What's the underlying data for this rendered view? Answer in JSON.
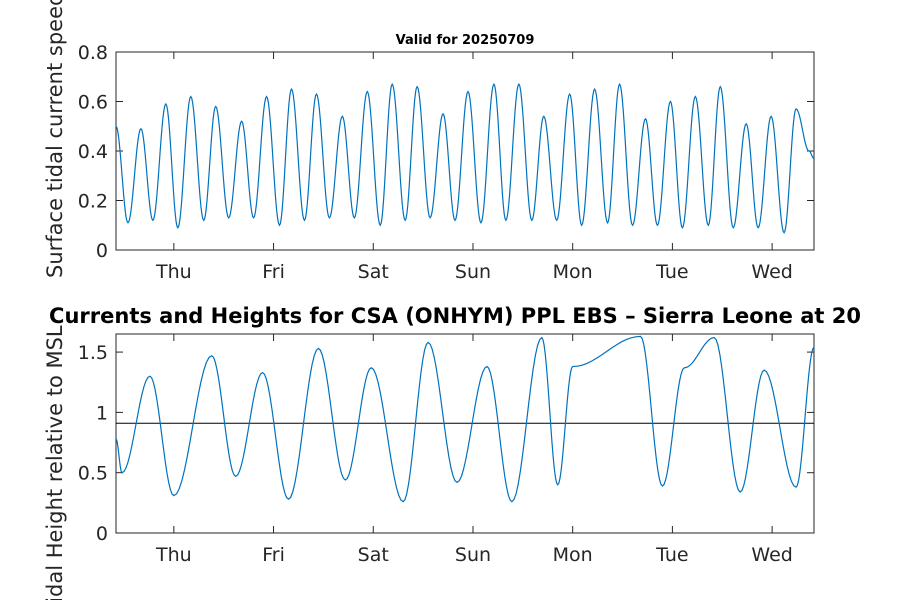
{
  "figure_title": "Currents and Heights for CSA (ONHYM) PPL EBS  – Sierra Leone at 20",
  "chart_data": [
    {
      "type": "line",
      "title": "Valid for 20250709",
      "ylabel": "Surface tidal current speed, kn",
      "ylim": [
        0,
        0.8
      ],
      "yticks": [
        "0",
        "0.2",
        "0.4",
        "0.6",
        "0.8"
      ],
      "yticks_values": [
        0,
        0.2,
        0.4,
        0.6,
        0.8
      ],
      "xlim": [
        0,
        7.0
      ],
      "xtick_positions": [
        0.58,
        1.58,
        2.58,
        3.58,
        4.58,
        5.58,
        6.58
      ],
      "xticks": [
        "Thu",
        "Fri",
        "Sat",
        "Sun",
        "Mon",
        "Tue",
        "Wed"
      ],
      "grid": false,
      "color": "#0072bd",
      "extrema": {
        "t": [
          0,
          0.12,
          0.25,
          0.37,
          0.5,
          0.62,
          0.75,
          0.88,
          1.0,
          1.13,
          1.26,
          1.38,
          1.51,
          1.64,
          1.76,
          1.89,
          2.01,
          2.14,
          2.27,
          2.39,
          2.52,
          2.65,
          2.77,
          2.9,
          3.02,
          3.15,
          3.28,
          3.4,
          3.53,
          3.66,
          3.79,
          3.91,
          4.04,
          4.17,
          4.29,
          4.42,
          4.55,
          4.67,
          4.8,
          4.93,
          5.05,
          5.18,
          5.31,
          5.43,
          5.56,
          5.68,
          5.81,
          5.94,
          6.06,
          6.19,
          6.32,
          6.44,
          6.57,
          6.7,
          6.82,
          6.95,
          7.0
        ],
        "v": [
          0.5,
          0.11,
          0.49,
          0.12,
          0.59,
          0.09,
          0.62,
          0.12,
          0.58,
          0.13,
          0.52,
          0.13,
          0.62,
          0.1,
          0.65,
          0.12,
          0.63,
          0.13,
          0.54,
          0.13,
          0.64,
          0.1,
          0.67,
          0.12,
          0.66,
          0.13,
          0.55,
          0.12,
          0.64,
          0.11,
          0.67,
          0.12,
          0.67,
          0.12,
          0.54,
          0.12,
          0.63,
          0.1,
          0.65,
          0.11,
          0.67,
          0.1,
          0.53,
          0.1,
          0.6,
          0.09,
          0.62,
          0.1,
          0.66,
          0.09,
          0.51,
          0.09,
          0.54,
          0.07,
          0.57,
          0.4,
          0.37
        ]
      }
    },
    {
      "type": "line",
      "ylabel": "Tidal Height relative to MSL",
      "ylim": [
        0,
        1.65
      ],
      "yticks": [
        "0",
        "0.5",
        "1",
        "1.5"
      ],
      "yticks_values": [
        0,
        0.5,
        1,
        1.5
      ],
      "xlim": [
        0,
        7.0
      ],
      "xtick_positions": [
        0.58,
        1.58,
        2.58,
        3.58,
        4.58,
        5.58,
        6.58
      ],
      "xticks": [
        "Thu",
        "Fri",
        "Sat",
        "Sun",
        "Mon",
        "Tue",
        "Wed"
      ],
      "reference_line": 0.91,
      "grid": false,
      "color": "#0072bd",
      "extrema": {
        "t": [
          0,
          0.06,
          0.34,
          0.58,
          0.96,
          1.2,
          1.47,
          1.73,
          2.03,
          2.3,
          2.56,
          2.88,
          3.13,
          3.42,
          3.72,
          3.97,
          4.27,
          4.43,
          4.58,
          5.26,
          5.48,
          5.7,
          6.0,
          6.26,
          6.5,
          6.82,
          7.0
        ],
        "v": [
          0.78,
          0.5,
          1.3,
          0.31,
          1.47,
          0.47,
          1.33,
          0.28,
          1.53,
          0.44,
          1.37,
          0.26,
          1.58,
          0.42,
          1.38,
          0.26,
          1.62,
          0.4,
          1.38,
          1.63,
          0.39,
          1.37,
          1.62,
          0.34,
          1.35,
          0.38,
          1.54
        ]
      }
    }
  ]
}
